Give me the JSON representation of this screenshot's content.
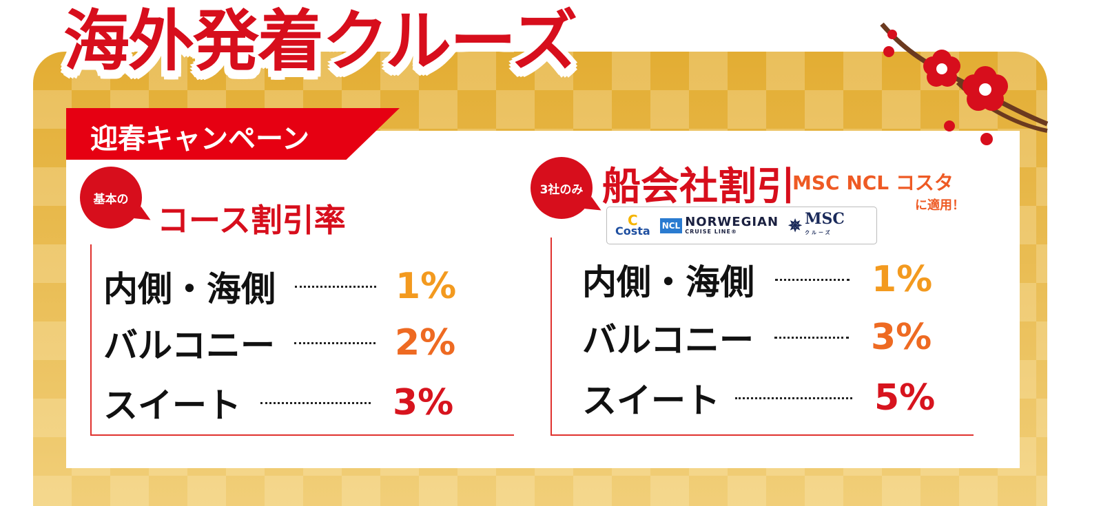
{
  "title": "海外発着クルーズ",
  "campaign_banner": "迎春キャンペーン",
  "left": {
    "bubble": "基本の",
    "heading": "コース割引率",
    "rows": [
      {
        "label": "内側・海側",
        "value": "1%",
        "color": "#f39a1f"
      },
      {
        "label": "バルコニー",
        "value": "2%",
        "color": "#ee6a22"
      },
      {
        "label": "スイート",
        "value": "3%",
        "color": "#d7141e"
      }
    ]
  },
  "right": {
    "bubble": "3社のみ",
    "heading": "船会社割引",
    "applies_to": "MSC NCL コスタ",
    "applies_suffix": "に適用！",
    "logos": {
      "costa": "Costa",
      "ncl_badge": "NCL",
      "ncl_name": "NORWEGIAN",
      "ncl_sub": "CRUISE LINE®",
      "msc": "MSC",
      "msc_sub": "クルーズ"
    },
    "rows": [
      {
        "label": "内側・海側",
        "value": "1%",
        "color": "#f39a1f"
      },
      {
        "label": "バルコニー",
        "value": "3%",
        "color": "#ee6a22"
      },
      {
        "label": "スイート",
        "value": "5%",
        "color": "#d7141e"
      }
    ]
  },
  "colors": {
    "red": "#d70e1c",
    "gold": "#e3ad33",
    "orange": "#ee5a24"
  }
}
